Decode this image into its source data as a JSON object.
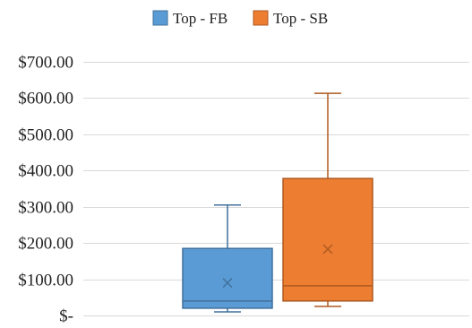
{
  "chart_data": {
    "type": "box",
    "title": "",
    "xlabel": "",
    "ylabel": "",
    "ylim": [
      0,
      700
    ],
    "y_ticks": [
      0,
      100,
      200,
      300,
      400,
      500,
      600,
      700
    ],
    "y_tick_labels": [
      "$-",
      "$100.00",
      "$200.00",
      "$300.00",
      "$400.00",
      "$500.00",
      "$600.00",
      "$700.00"
    ],
    "grid": true,
    "legend_position": "top-center",
    "series": [
      {
        "name": "Top - FB",
        "color": "#5b9bd5",
        "stroke": "#41719c",
        "min": 10,
        "q1": 20,
        "median": 40,
        "mean": 90,
        "q3": 185,
        "max": 305
      },
      {
        "name": "Top - SB",
        "color": "#ed7d31",
        "stroke": "#ae5a21",
        "min": 25,
        "q1": 40,
        "median": 82,
        "mean": 183,
        "q3": 378,
        "max": 613
      }
    ]
  }
}
